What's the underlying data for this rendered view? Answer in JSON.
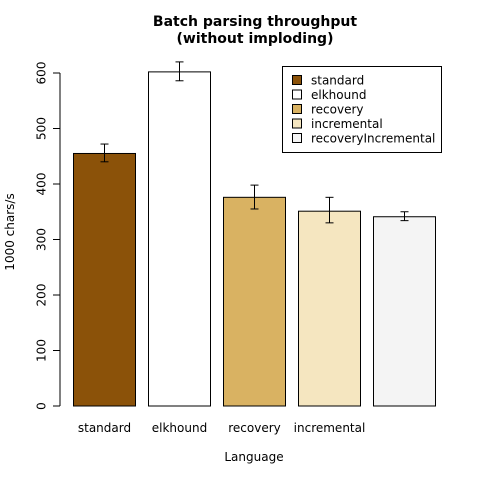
{
  "chart_data": {
    "type": "bar",
    "title_line1": "Batch parsing throughput",
    "title_line2": "(without imploding)",
    "xlabel": "Language",
    "ylabel": "1000 chars/s",
    "ylim": [
      0,
      600
    ],
    "yticks": [
      0,
      100,
      200,
      300,
      400,
      500,
      600
    ],
    "grid": false,
    "legend_position": "top-right",
    "categories": [
      "standard",
      "elkhound",
      "recovery",
      "incremental",
      "recoveryIncremental"
    ],
    "category_labels_shown": [
      "standard",
      "elkhound",
      "recovery",
      "incremental",
      ""
    ],
    "values": [
      455,
      602,
      376,
      351,
      341
    ],
    "error_low": [
      440,
      586,
      355,
      330,
      334
    ],
    "error_high": [
      472,
      620,
      398,
      376,
      350
    ],
    "colors": [
      "#8B5209",
      "#FFFFFF",
      "#D9B262",
      "#F5E6C0",
      "#F4F4F4"
    ]
  }
}
